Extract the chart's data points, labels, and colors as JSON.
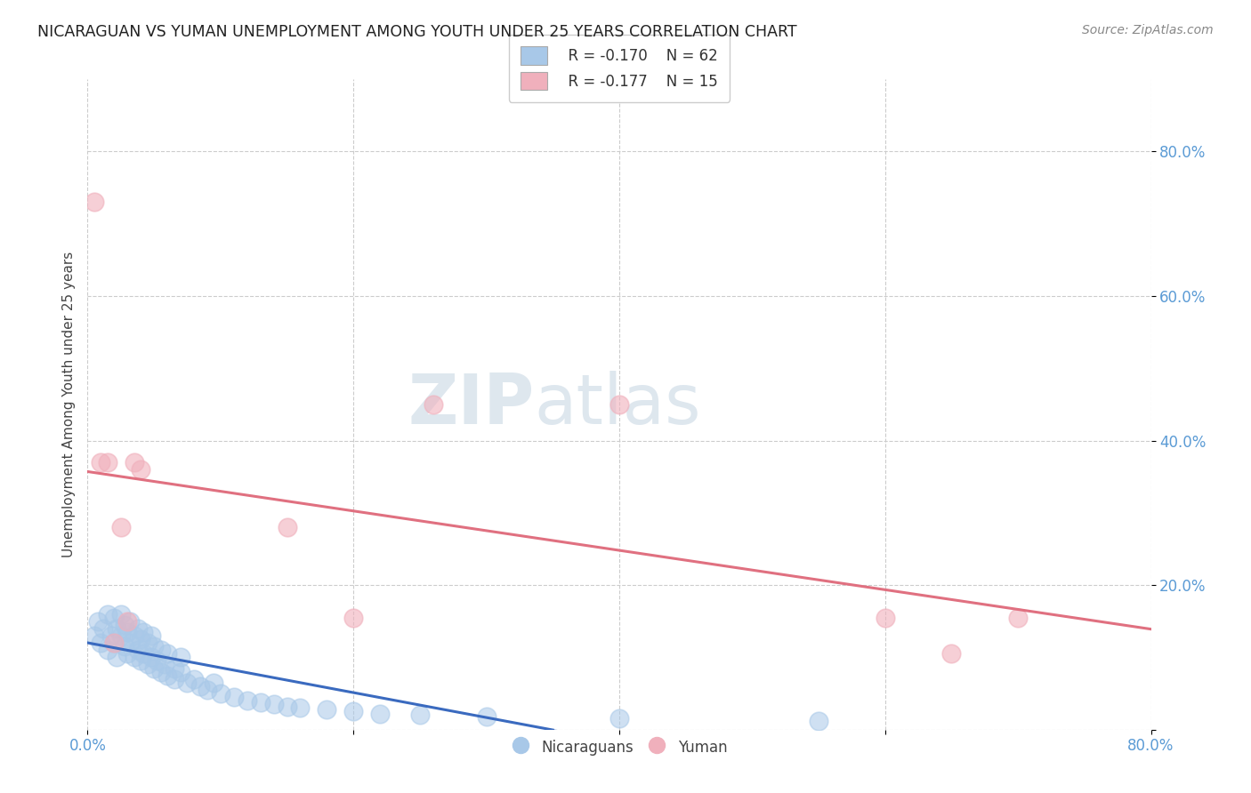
{
  "title": "NICARAGUAN VS YUMAN UNEMPLOYMENT AMONG YOUTH UNDER 25 YEARS CORRELATION CHART",
  "source": "Source: ZipAtlas.com",
  "ylabel": "Unemployment Among Youth under 25 years",
  "xlim": [
    0.0,
    0.8
  ],
  "ylim": [
    0.0,
    0.9
  ],
  "xticks": [
    0.0,
    0.2,
    0.4,
    0.6,
    0.8
  ],
  "xticklabels": [
    "0.0%",
    "",
    "",
    "",
    "80.0%"
  ],
  "yticks": [
    0.0,
    0.2,
    0.4,
    0.6,
    0.8
  ],
  "yticklabels_right": [
    "",
    "20.0%",
    "40.0%",
    "60.0%",
    "80.0%"
  ],
  "legend_r1": "R = -0.170",
  "legend_n1": "N = 62",
  "legend_r2": "R = -0.177",
  "legend_n2": "N = 15",
  "blue_color": "#a8c8e8",
  "pink_color": "#f0b0bc",
  "blue_line_color": "#3a6abf",
  "pink_line_color": "#e07080",
  "title_color": "#222222",
  "source_color": "#888888",
  "tick_color": "#5b9bd5",
  "grid_color": "#cccccc",
  "nic_x": [
    0.005,
    0.008,
    0.01,
    0.012,
    0.015,
    0.015,
    0.018,
    0.02,
    0.02,
    0.022,
    0.022,
    0.025,
    0.025,
    0.028,
    0.028,
    0.03,
    0.03,
    0.032,
    0.032,
    0.035,
    0.035,
    0.038,
    0.038,
    0.04,
    0.04,
    0.042,
    0.042,
    0.045,
    0.045,
    0.048,
    0.048,
    0.05,
    0.05,
    0.052,
    0.055,
    0.055,
    0.058,
    0.06,
    0.06,
    0.065,
    0.065,
    0.07,
    0.07,
    0.075,
    0.08,
    0.085,
    0.09,
    0.095,
    0.1,
    0.11,
    0.12,
    0.13,
    0.14,
    0.15,
    0.16,
    0.18,
    0.2,
    0.22,
    0.25,
    0.3,
    0.4,
    0.55
  ],
  "nic_y": [
    0.13,
    0.15,
    0.12,
    0.14,
    0.11,
    0.16,
    0.13,
    0.12,
    0.155,
    0.14,
    0.1,
    0.13,
    0.16,
    0.115,
    0.145,
    0.105,
    0.135,
    0.12,
    0.15,
    0.1,
    0.13,
    0.11,
    0.14,
    0.095,
    0.125,
    0.105,
    0.135,
    0.09,
    0.12,
    0.1,
    0.13,
    0.085,
    0.115,
    0.095,
    0.08,
    0.11,
    0.09,
    0.075,
    0.105,
    0.085,
    0.07,
    0.08,
    0.1,
    0.065,
    0.07,
    0.06,
    0.055,
    0.065,
    0.05,
    0.045,
    0.04,
    0.038,
    0.035,
    0.032,
    0.03,
    0.028,
    0.025,
    0.022,
    0.02,
    0.018,
    0.015,
    0.012
  ],
  "yum_x": [
    0.005,
    0.01,
    0.015,
    0.02,
    0.025,
    0.03,
    0.035,
    0.04,
    0.15,
    0.2,
    0.26,
    0.4,
    0.6,
    0.65,
    0.7
  ],
  "yum_y": [
    0.73,
    0.37,
    0.37,
    0.12,
    0.28,
    0.15,
    0.37,
    0.36,
    0.28,
    0.155,
    0.45,
    0.45,
    0.155,
    0.105,
    0.155
  ],
  "watermark_zip": "ZIP",
  "watermark_atlas": "atlas"
}
